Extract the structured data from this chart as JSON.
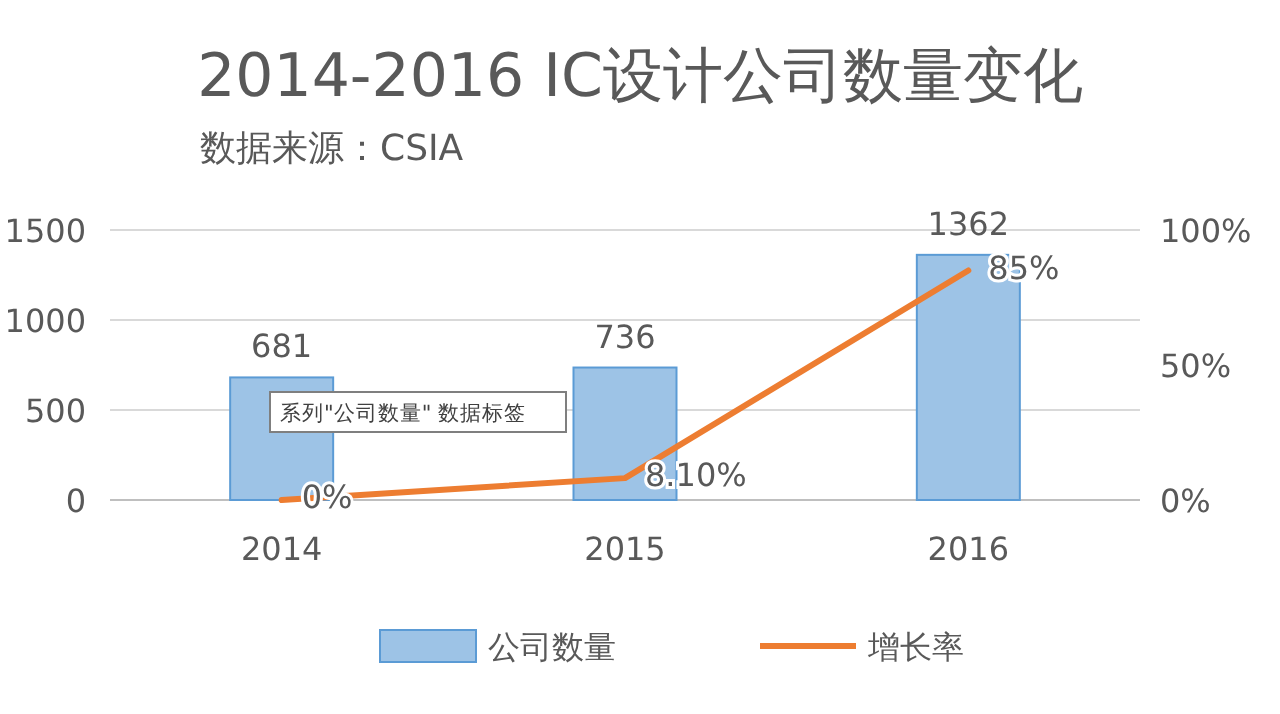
{
  "chart_data": {
    "type": "bar",
    "title": "2014-2016 IC设计公司数量变化",
    "subtitle": "数据来源：CSIA",
    "categories": [
      "2014",
      "2015",
      "2016"
    ],
    "series": [
      {
        "name": "公司数量",
        "color": "#9dc3e6",
        "values": [
          681,
          736,
          1362
        ],
        "value_labels": [
          "681",
          "736",
          "1362"
        ]
      },
      {
        "name": "增长率",
        "type": "line",
        "axis": "y2",
        "color": "#ed7d31",
        "values": [
          0,
          8.1,
          85
        ],
        "value_labels": [
          "0%",
          "8.10%",
          "85%"
        ]
      }
    ],
    "ylim": [
      0,
      1500
    ],
    "yticks": [
      0,
      500,
      1000,
      1500
    ],
    "y2lim": [
      0,
      100
    ],
    "y2ticks": [
      {
        "value": 0,
        "label": "0%"
      },
      {
        "value": 50,
        "label": "50%"
      },
      {
        "value": 100,
        "label": "100%"
      }
    ],
    "grid": "y",
    "legend": "bottom",
    "marker": "none",
    "line_style": "solid",
    "annotations": [
      "系列\"公司数量\" 数据标签"
    ]
  }
}
